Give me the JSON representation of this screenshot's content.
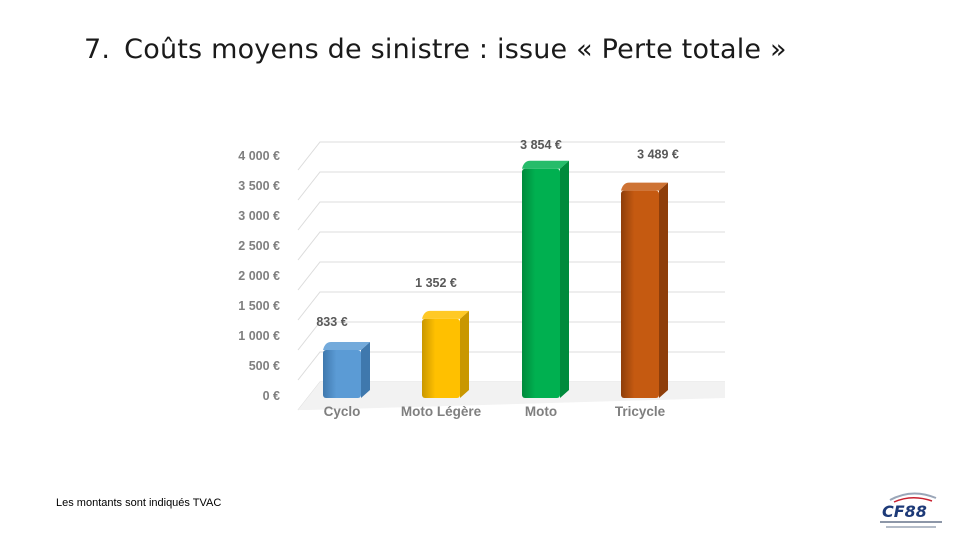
{
  "slide": {
    "number": "7.",
    "title": "Coûts moyens de sinistre : issue « Perte totale »",
    "footnote": "Les montants sont indiqués TVAC",
    "logo_text": "CF88"
  },
  "chart_data": {
    "type": "bar",
    "title": "",
    "xlabel": "",
    "ylabel": "",
    "categories": [
      "Cyclo",
      "Moto Légère",
      "Moto",
      "Tricycle"
    ],
    "values": [
      833,
      1352,
      3854,
      3489
    ],
    "value_labels": [
      "833 €",
      "1 352 €",
      "3 854 €",
      "3 489 €"
    ],
    "ylim": [
      0,
      4000
    ],
    "yticks": [
      0,
      500,
      1000,
      1500,
      2000,
      2500,
      3000,
      3500,
      4000
    ],
    "ytick_labels": [
      "0 €",
      "500 €",
      "1 000 €",
      "1 500 €",
      "2 000 €",
      "2 500 €",
      "3 000 €",
      "3 500 €",
      "4 000 €"
    ],
    "grid": true,
    "colors": [
      "#5b9bd5",
      "#ffc000",
      "#00b050",
      "#c55a11"
    ],
    "side_colors": [
      "#3f78ad",
      "#c99700",
      "#008a3c",
      "#8e3e0a"
    ]
  }
}
